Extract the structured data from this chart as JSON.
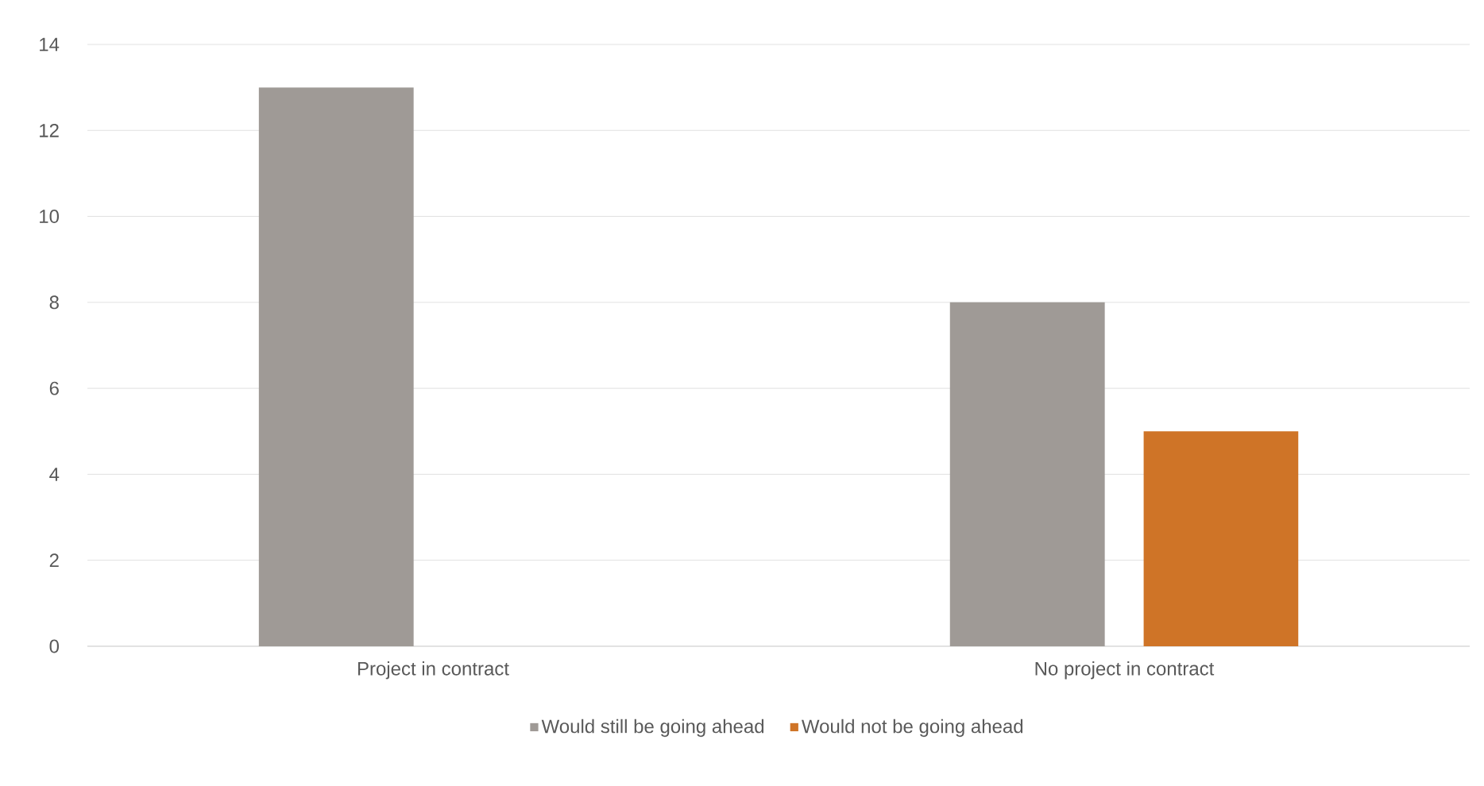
{
  "chart_data": {
    "type": "bar",
    "categories": [
      "Project in contract",
      "No project in contract"
    ],
    "series": [
      {
        "name": "Would still be going ahead",
        "color": "#9f9a96",
        "values": [
          13,
          8
        ]
      },
      {
        "name": "Would not be going ahead",
        "color": "#cf7427",
        "values": [
          null,
          5
        ]
      }
    ],
    "ylim": [
      0,
      14
    ],
    "yticks": [
      0,
      2,
      4,
      6,
      8,
      10,
      12,
      14
    ],
    "grid": "y",
    "legend": "bottom"
  }
}
